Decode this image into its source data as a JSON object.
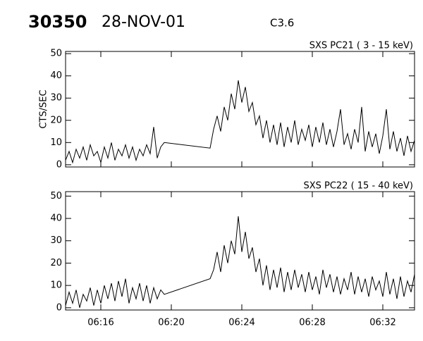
{
  "header": {
    "id": "30350",
    "date": "28-NOV-01",
    "class": "C3.6"
  },
  "chart_data": [
    {
      "type": "line",
      "title": "SXS PC21  (  3 - 15 keV)",
      "ylabel": "CTS/SEC",
      "color": "#000000",
      "xlim": [
        14.0,
        33.8
      ],
      "ylim": [
        -1,
        51
      ],
      "xticks": [
        16,
        20,
        24,
        28,
        32
      ],
      "xticklabels": false,
      "yticks": [
        0,
        10,
        20,
        30,
        40,
        50
      ],
      "x": [
        14.0,
        14.2,
        14.4,
        14.6,
        14.8,
        15.0,
        15.2,
        15.4,
        15.6,
        15.8,
        16.0,
        16.2,
        16.4,
        16.6,
        16.8,
        17.0,
        17.2,
        17.4,
        17.6,
        17.8,
        18.0,
        18.2,
        18.4,
        18.6,
        18.8,
        19.0,
        19.2,
        19.4,
        19.6,
        22.2,
        22.4,
        22.6,
        22.8,
        23.0,
        23.2,
        23.4,
        23.6,
        23.8,
        24.0,
        24.2,
        24.4,
        24.6,
        24.8,
        25.0,
        25.2,
        25.4,
        25.6,
        25.8,
        26.0,
        26.2,
        26.4,
        26.6,
        26.8,
        27.0,
        27.2,
        27.4,
        27.6,
        27.8,
        28.0,
        28.2,
        28.4,
        28.6,
        28.8,
        29.0,
        29.2,
        29.4,
        29.6,
        29.8,
        30.0,
        30.2,
        30.4,
        30.6,
        30.8,
        31.0,
        31.2,
        31.4,
        31.6,
        31.8,
        32.0,
        32.2,
        32.4,
        32.6,
        32.8,
        33.0,
        33.2,
        33.4,
        33.6,
        33.8
      ],
      "values": [
        2,
        6,
        1,
        7,
        3,
        8,
        2,
        9,
        4,
        6,
        1,
        8,
        3,
        10,
        2,
        7,
        4,
        9,
        3,
        8,
        2,
        7,
        4,
        9,
        5,
        17,
        3,
        8,
        10,
        7.5,
        16,
        22,
        15,
        26,
        20,
        32,
        25,
        38,
        28,
        35,
        24,
        28,
        18,
        22,
        12,
        20,
        10,
        18,
        9,
        19,
        8,
        17,
        10,
        20,
        9,
        16,
        11,
        18,
        8,
        17,
        10,
        19,
        9,
        16,
        8,
        15,
        25,
        9,
        14,
        7,
        16,
        10,
        26,
        6,
        15,
        8,
        14,
        5,
        13,
        25,
        7,
        15,
        6,
        12,
        4,
        13,
        6,
        11
      ]
    },
    {
      "type": "line",
      "title": "SXS PC22  ( 15 - 40 keV)",
      "color": "#000000",
      "xlim": [
        14.0,
        33.8
      ],
      "ylim": [
        -1,
        52
      ],
      "xticks": [
        {
          "value": 16,
          "label": "06:16"
        },
        {
          "value": 20,
          "label": "06:20"
        },
        {
          "value": 24,
          "label": "06:24"
        },
        {
          "value": 28,
          "label": "06:28"
        },
        {
          "value": 32,
          "label": "06:32"
        }
      ],
      "yticks": [
        0,
        10,
        20,
        30,
        40,
        50
      ],
      "x": [
        14.0,
        14.2,
        14.4,
        14.6,
        14.8,
        15.0,
        15.2,
        15.4,
        15.6,
        15.8,
        16.0,
        16.2,
        16.4,
        16.6,
        16.8,
        17.0,
        17.2,
        17.4,
        17.6,
        17.8,
        18.0,
        18.2,
        18.4,
        18.6,
        18.8,
        19.0,
        19.2,
        19.4,
        19.6,
        22.2,
        22.4,
        22.6,
        22.8,
        23.0,
        23.2,
        23.4,
        23.6,
        23.8,
        24.0,
        24.2,
        24.4,
        24.6,
        24.8,
        25.0,
        25.2,
        25.4,
        25.6,
        25.8,
        26.0,
        26.2,
        26.4,
        26.6,
        26.8,
        27.0,
        27.2,
        27.4,
        27.6,
        27.8,
        28.0,
        28.2,
        28.4,
        28.6,
        28.8,
        29.0,
        29.2,
        29.4,
        29.6,
        29.8,
        30.0,
        30.2,
        30.4,
        30.6,
        30.8,
        31.0,
        31.2,
        31.4,
        31.6,
        31.8,
        32.0,
        32.2,
        32.4,
        32.6,
        32.8,
        33.0,
        33.2,
        33.4,
        33.6,
        33.8
      ],
      "values": [
        1,
        7,
        2,
        8,
        0,
        6,
        3,
        9,
        1,
        8,
        2,
        10,
        4,
        11,
        3,
        12,
        5,
        13,
        2,
        9,
        4,
        11,
        3,
        10,
        2,
        9,
        4,
        8,
        6,
        13,
        17,
        25,
        16,
        28,
        20,
        30,
        24,
        41,
        25,
        34,
        22,
        27,
        16,
        22,
        10,
        19,
        8,
        17,
        9,
        18,
        7,
        16,
        8,
        17,
        9,
        15,
        7,
        16,
        8,
        14,
        6,
        17,
        9,
        15,
        7,
        14,
        6,
        13,
        8,
        16,
        6,
        14,
        7,
        13,
        5,
        14,
        8,
        12,
        5,
        16,
        6,
        13,
        4,
        14,
        5,
        12,
        7,
        15
      ]
    }
  ]
}
